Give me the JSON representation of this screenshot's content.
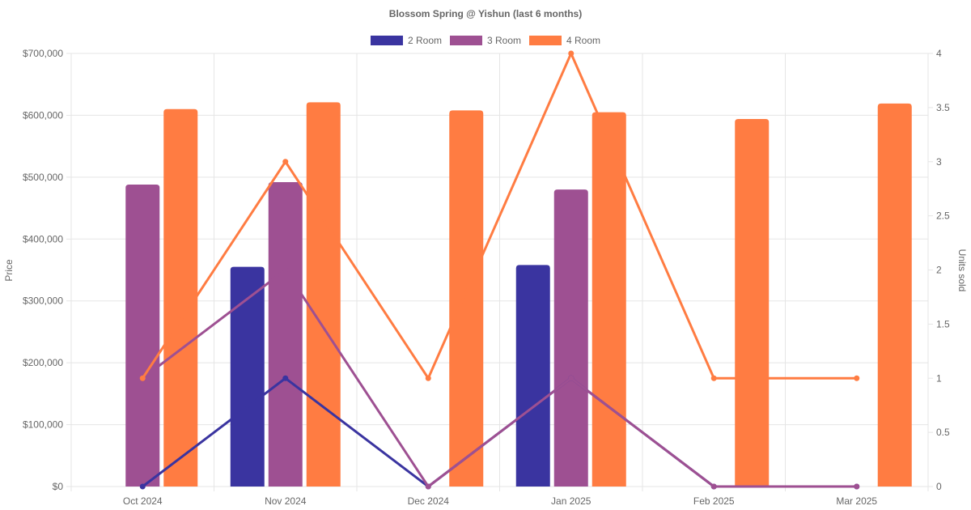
{
  "chart_data": {
    "type": "bar",
    "title": "Blossom Spring @ Yishun (last 6 months)",
    "categories": [
      "Oct 2024",
      "Nov 2024",
      "Dec 2024",
      "Jan 2025",
      "Feb 2025",
      "Mar 2025"
    ],
    "ylabel": "Price",
    "y2label": "Units sold",
    "ylim": [
      0,
      700000
    ],
    "y2lim": [
      0,
      4
    ],
    "y_ticks": [
      "$0",
      "$100,000",
      "$200,000",
      "$300,000",
      "$400,000",
      "$500,000",
      "$600,000",
      "$700,000"
    ],
    "y2_ticks": [
      "0",
      "0.5",
      "1",
      "1.5",
      "2",
      "2.5",
      "3",
      "3.5",
      "4"
    ],
    "legend_position": "top",
    "grid": true,
    "series": [
      {
        "name": "2 Room",
        "color": "#3a34a0",
        "prices": [
          null,
          355000,
          null,
          358000,
          null,
          null
        ],
        "units": [
          0,
          1,
          0,
          1,
          0,
          0
        ]
      },
      {
        "name": "3 Room",
        "color": "#9e5092",
        "prices": [
          488000,
          492000,
          null,
          480000,
          null,
          null
        ],
        "units": [
          1,
          2,
          0,
          1,
          0,
          0
        ]
      },
      {
        "name": "4 Room",
        "color": "#ff7c42",
        "prices": [
          610000,
          621000,
          608000,
          605000,
          594000,
          619000
        ],
        "units": [
          1,
          3,
          1,
          4,
          1,
          1
        ]
      }
    ]
  }
}
